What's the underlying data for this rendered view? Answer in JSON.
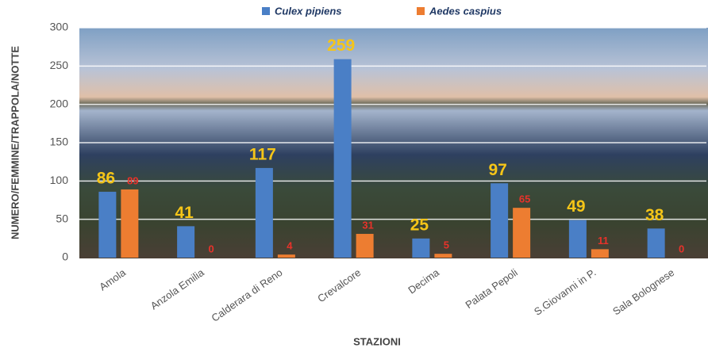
{
  "chart_data": {
    "type": "bar",
    "categories": [
      "Amola",
      "Anzola Emilia",
      "Calderara di Reno",
      "Crevalcore",
      "Decima",
      "Palata Pepoli",
      "S.Giovanni in P.",
      "Sala Bolognese"
    ],
    "series": [
      {
        "name": "Culex pipiens",
        "color": "#4a7fc6",
        "values": [
          86,
          41,
          117,
          259,
          25,
          97,
          49,
          38
        ]
      },
      {
        "name": "Aedes caspius",
        "color": "#ed7d31",
        "values": [
          89,
          0,
          4,
          31,
          5,
          65,
          11,
          0
        ]
      }
    ],
    "ylim": [
      0,
      300
    ],
    "yticks": [
      0,
      50,
      100,
      150,
      200,
      250,
      300
    ],
    "grid": true,
    "y_label": "NUMERO/FEMMINE/TRAPPOLA/NOTTE",
    "x_label": "STAZIONI",
    "legend": "top"
  }
}
